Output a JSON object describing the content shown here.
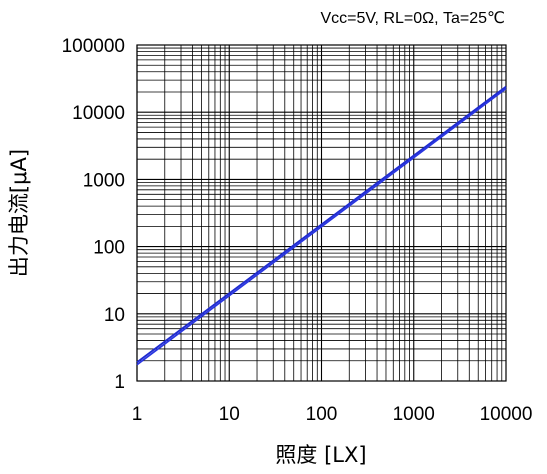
{
  "chart_data": {
    "type": "line",
    "annotation": "Vcc=5V, RL=0Ω, Ta=25℃",
    "xlabel": "照度 [LX]",
    "ylabel": "出力电流[μA]",
    "x_scale": "log",
    "y_scale": "log",
    "xlim": [
      1,
      10000
    ],
    "ylim": [
      1,
      100000
    ],
    "x_ticks": [
      "1",
      "10",
      "100",
      "1000",
      "10000"
    ],
    "y_ticks": [
      "1",
      "10",
      "100",
      "1000",
      "10000",
      "100000"
    ],
    "grid": true,
    "series": [
      {
        "color": "#1f2bd0",
        "x": [
          1,
          10000
        ],
        "y": [
          1.9,
          24000
        ]
      },
      {
        "color": "#2a36e0",
        "x": [
          1,
          10000
        ],
        "y": [
          1.75,
          22500
        ]
      }
    ]
  }
}
